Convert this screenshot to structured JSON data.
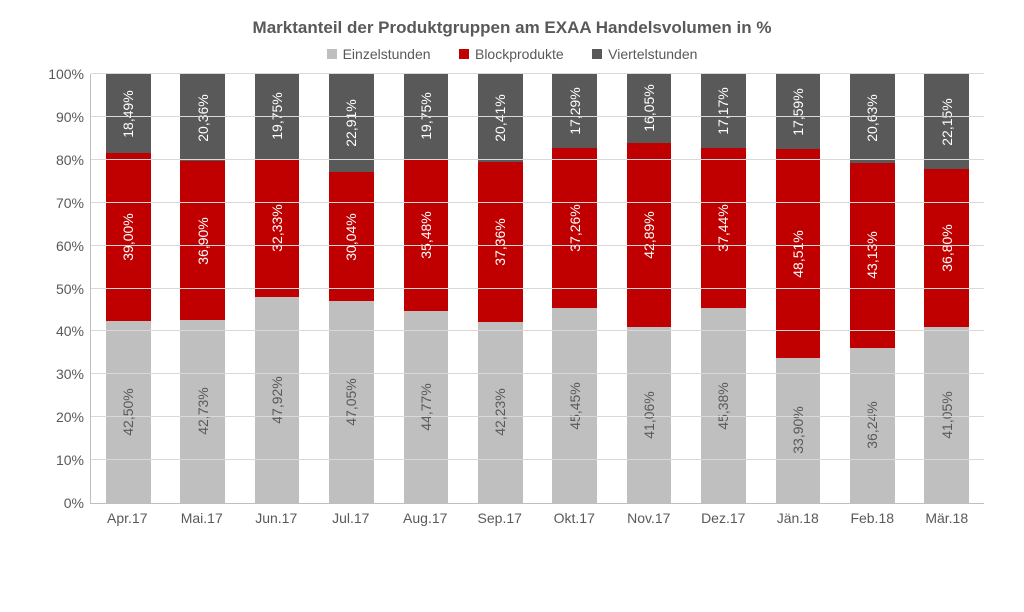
{
  "chart": {
    "type": "stacked-bar",
    "title": "Marktanteil der Produktgruppen am EXAA Handelsvolumen in %",
    "title_fontsize": 17,
    "title_color": "#595959",
    "legend_fontsize": 14,
    "series": [
      {
        "name": "Einzelstunden",
        "color": "#bfbfbf",
        "label_color": "#595959"
      },
      {
        "name": "Blockprodukte",
        "color": "#c00000",
        "label_color": "#ffffff"
      },
      {
        "name": "Viertelstunden",
        "color": "#595959",
        "label_color": "#ffffff"
      }
    ],
    "categories": [
      "Apr.17",
      "Mai.17",
      "Jun.17",
      "Jul.17",
      "Aug.17",
      "Sep.17",
      "Okt.17",
      "Nov.17",
      "Dez.17",
      "Jän.18",
      "Feb.18",
      "Mär.18"
    ],
    "values": {
      "Einzelstunden": [
        42.5,
        42.73,
        47.92,
        47.05,
        44.77,
        42.23,
        45.45,
        41.06,
        45.38,
        33.9,
        36.24,
        41.05
      ],
      "Blockprodukte": [
        39.0,
        36.9,
        32.33,
        30.04,
        35.48,
        37.36,
        37.26,
        42.89,
        37.44,
        48.51,
        43.13,
        36.8
      ],
      "Viertelstunden": [
        18.49,
        20.36,
        19.75,
        22.91,
        19.75,
        20.41,
        17.29,
        16.05,
        17.17,
        17.59,
        20.63,
        22.15
      ]
    },
    "labels": {
      "Einzelstunden": [
        "42,50%",
        "42,73%",
        "47,92%",
        "47,05%",
        "44,77%",
        "42,23%",
        "45,45%",
        "41,06%",
        "45,38%",
        "33,90%",
        "36,24%",
        "41,05%"
      ],
      "Blockprodukte": [
        "39,00%",
        "36,90%",
        "32,33%",
        "30,04%",
        "35,48%",
        "37,36%",
        "37,26%",
        "42,89%",
        "37,44%",
        "48,51%",
        "43,13%",
        "36,80%"
      ],
      "Viertelstunden": [
        "18,49%",
        "20,36%",
        "19,75%",
        "22,91%",
        "19,75%",
        "20,41%",
        "17,29%",
        "16,05%",
        "17,17%",
        "17,59%",
        "20,63%",
        "22,15%"
      ]
    },
    "ylim": [
      0,
      100
    ],
    "ytick_step": 10,
    "yticks": [
      "0%",
      "10%",
      "20%",
      "30%",
      "40%",
      "50%",
      "60%",
      "70%",
      "80%",
      "90%",
      "100%"
    ],
    "axis_fontsize": 14,
    "bar_label_fontsize": 14,
    "bar_width_pct": 60,
    "background_color": "#ffffff",
    "grid_color": "#d9d9d9",
    "axis_color": "#bfbfbf",
    "text_color": "#595959"
  }
}
